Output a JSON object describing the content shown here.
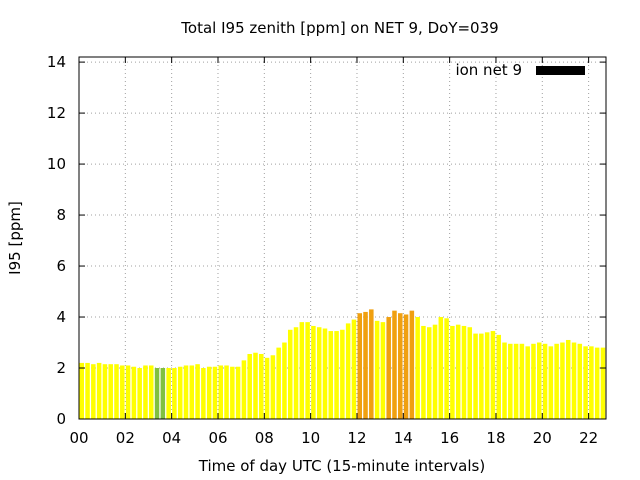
{
  "chart_data": {
    "type": "bar",
    "title": "Total I95 zenith [ppm] on NET 9, DoY=039",
    "xlabel": "Time of day UTC (15-minute intervals)",
    "ylabel": "I95 [ppm]",
    "legend_label": "ion net 9",
    "legend_position": "top-right",
    "grid": true,
    "xlim": [
      0,
      22.75
    ],
    "ylim": [
      0,
      14.2
    ],
    "x_ticks": [
      0,
      2,
      4,
      6,
      8,
      10,
      12,
      14,
      16,
      18,
      20,
      22
    ],
    "x_tick_labels": [
      "00",
      "02",
      "04",
      "06",
      "08",
      "10",
      "12",
      "14",
      "16",
      "18",
      "20",
      "22"
    ],
    "y_ticks": [
      0,
      2,
      4,
      6,
      8,
      10,
      12,
      14
    ],
    "y_tick_labels": [
      "0",
      "2",
      "4",
      "6",
      "8",
      "10",
      "12",
      "14"
    ],
    "bin_hours": 0.25,
    "values": [
      2.2,
      2.2,
      2.15,
      2.2,
      2.15,
      2.15,
      2.15,
      2.1,
      2.1,
      2.05,
      2.0,
      2.1,
      2.1,
      2.0,
      2.0,
      2.0,
      2.0,
      2.05,
      2.1,
      2.1,
      2.15,
      2.0,
      2.05,
      2.05,
      2.1,
      2.1,
      2.05,
      2.05,
      2.3,
      2.55,
      2.6,
      2.55,
      2.4,
      2.5,
      2.8,
      3.0,
      3.5,
      3.6,
      3.8,
      3.8,
      3.65,
      3.6,
      3.55,
      3.45,
      3.45,
      3.5,
      3.75,
      3.9,
      4.15,
      4.2,
      4.3,
      3.85,
      3.8,
      4.0,
      4.25,
      4.15,
      4.1,
      4.25,
      4.0,
      3.65,
      3.6,
      3.7,
      4.0,
      3.95,
      3.65,
      3.7,
      3.65,
      3.6,
      3.35,
      3.35,
      3.4,
      3.45,
      3.3,
      3.0,
      2.95,
      2.95,
      2.95,
      2.85,
      2.95,
      3.0,
      2.95,
      2.85,
      2.95,
      3.0,
      3.1,
      3.0,
      2.95,
      2.85,
      2.85,
      2.8,
      2.8
    ],
    "colors": [
      "#ffff00",
      "#ffff00",
      "#ffff00",
      "#ffff00",
      "#ffff00",
      "#ffff00",
      "#ffff00",
      "#ffff00",
      "#ffff00",
      "#ffff00",
      "#ffff00",
      "#ffff00",
      "#ffff00",
      "#80c040",
      "#80c040",
      "#ffff00",
      "#ffff00",
      "#ffff00",
      "#ffff00",
      "#ffff00",
      "#ffff00",
      "#ffff00",
      "#ffff00",
      "#ffff00",
      "#ffff00",
      "#ffff00",
      "#ffff00",
      "#ffff00",
      "#ffff00",
      "#ffff00",
      "#ffff00",
      "#ffff00",
      "#ffff00",
      "#ffff00",
      "#ffff00",
      "#ffff00",
      "#ffff00",
      "#ffff00",
      "#ffff00",
      "#ffff00",
      "#ffff00",
      "#ffff00",
      "#ffff00",
      "#ffff00",
      "#ffff00",
      "#ffff00",
      "#ffff00",
      "#ffff00",
      "#f0a010",
      "#f0a010",
      "#f0a010",
      "#ffff00",
      "#ffff00",
      "#f0a010",
      "#f0a010",
      "#f0a010",
      "#f0a010",
      "#f0a010",
      "#ffff00",
      "#ffff00",
      "#ffff00",
      "#ffff00",
      "#ffff00",
      "#ffff00",
      "#ffff00",
      "#ffff00",
      "#ffff00",
      "#ffff00",
      "#ffff00",
      "#ffff00",
      "#ffff00",
      "#ffff00",
      "#ffff00",
      "#ffff00",
      "#ffff00",
      "#ffff00",
      "#ffff00",
      "#ffff00",
      "#ffff00",
      "#ffff00",
      "#ffff00",
      "#ffff00",
      "#ffff00",
      "#ffff00",
      "#ffff00",
      "#ffff00",
      "#ffff00",
      "#ffff00",
      "#ffff00",
      "#ffff00",
      "#ffff00"
    ],
    "legend_color": "#000000",
    "grid_color": "#a0a0a0"
  }
}
